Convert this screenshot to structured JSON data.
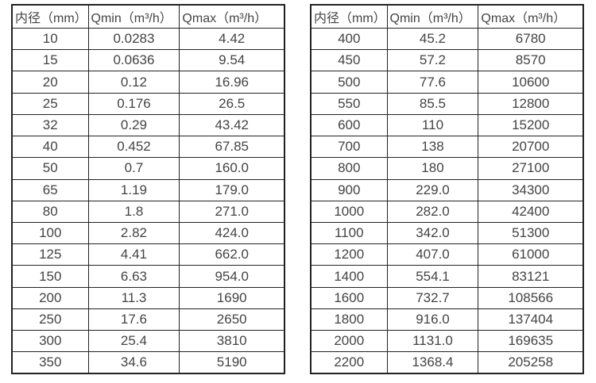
{
  "page": {
    "background": "#ffffff",
    "text_color": "#444444",
    "border_color": "#222222"
  },
  "tables": [
    {
      "headers": [
        "内径（mm）",
        "Qmin（m³/h）",
        "Qmax（m³/h）"
      ],
      "rows": [
        [
          "10",
          "0.0283",
          "4.42"
        ],
        [
          "15",
          "0.0636",
          "9.54"
        ],
        [
          "20",
          "0.12",
          "16.96"
        ],
        [
          "25",
          "0.176",
          "26.5"
        ],
        [
          "32",
          "0.29",
          "43.42"
        ],
        [
          "40",
          "0.452",
          "67.85"
        ],
        [
          "50",
          "0.7",
          "160.0"
        ],
        [
          "65",
          "1.19",
          "179.0"
        ],
        [
          "80",
          "1.8",
          "271.0"
        ],
        [
          "100",
          "2.82",
          "424.0"
        ],
        [
          "125",
          "4.41",
          "662.0"
        ],
        [
          "150",
          "6.63",
          "954.0"
        ],
        [
          "200",
          "11.3",
          "1690"
        ],
        [
          "250",
          "17.6",
          "2650"
        ],
        [
          "300",
          "25.4",
          "3810"
        ],
        [
          "350",
          "34.6",
          "5190"
        ]
      ]
    },
    {
      "headers": [
        "内径（mm）",
        "Qmin（m³/h）",
        "Qmax（m³/h）"
      ],
      "rows": [
        [
          "400",
          "45.2",
          "6780"
        ],
        [
          "450",
          "57.2",
          "8570"
        ],
        [
          "500",
          "77.6",
          "10600"
        ],
        [
          "550",
          "85.5",
          "12800"
        ],
        [
          "600",
          "110",
          "15200"
        ],
        [
          "700",
          "138",
          "20700"
        ],
        [
          "800",
          "180",
          "27100"
        ],
        [
          "900",
          "229.0",
          "34300"
        ],
        [
          "1000",
          "282.0",
          "42400"
        ],
        [
          "1100",
          "342.0",
          "51300"
        ],
        [
          "1200",
          "407.0",
          "61000"
        ],
        [
          "1400",
          "554.1",
          "83121"
        ],
        [
          "1600",
          "732.7",
          "108566"
        ],
        [
          "1800",
          "916.0",
          "137404"
        ],
        [
          "2000",
          "1131.0",
          "169635"
        ],
        [
          "2200",
          "1368.4",
          "205258"
        ]
      ]
    }
  ]
}
